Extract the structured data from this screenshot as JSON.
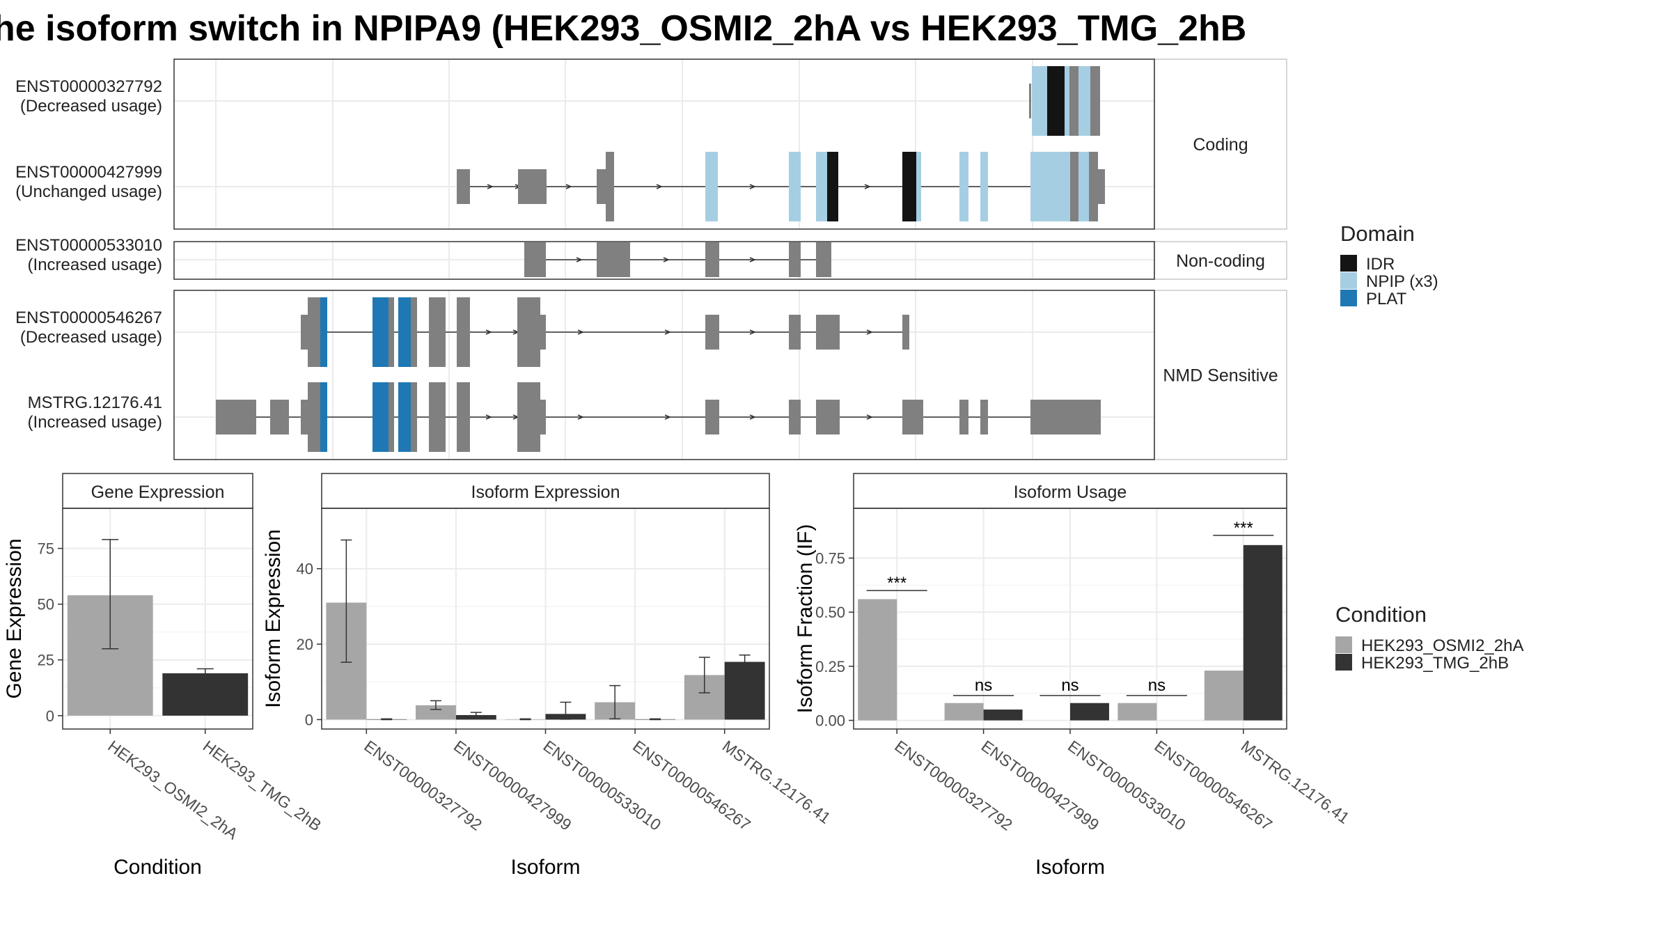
{
  "title": "he isoform switch in NPIPA9 (HEK293_OSMI2_2hA vs HEK293_TMG_2hB",
  "colors": {
    "exon": "#808080",
    "IDR": "#141414",
    "NPIP": "#a6cee3",
    "PLAT": "#1f78b4",
    "cond1": "#a6a6a6",
    "cond2": "#333333"
  },
  "structure": {
    "groups": [
      {
        "label": "Coding",
        "isoforms": [
          {
            "id": "ENST00000327792",
            "usage": "(Decreased usage)"
          },
          {
            "id": "ENST00000427999",
            "usage": "(Unchanged usage)"
          }
        ]
      },
      {
        "label": "Non-coding",
        "isoforms": [
          {
            "id": "ENST00000533010",
            "usage": "(Increased usage)"
          }
        ]
      },
      {
        "label": "NMD Sensitive",
        "isoforms": [
          {
            "id": "ENST00000546267",
            "usage": "(Decreased usage)"
          },
          {
            "id": "MSTRG.12176.41",
            "usage": "(Increased usage)"
          }
        ]
      }
    ]
  },
  "legend_domain": {
    "title": "Domain",
    "items": [
      {
        "label": "IDR",
        "color": "#141414"
      },
      {
        "label": "NPIP (x3)",
        "color": "#a6cee3"
      },
      {
        "label": "PLAT",
        "color": "#1f78b4"
      }
    ]
  },
  "legend_condition": {
    "title": "Condition",
    "items": [
      {
        "label": "HEK293_OSMI2_2hA",
        "color": "#a6a6a6"
      },
      {
        "label": "HEK293_TMG_2hB",
        "color": "#333333"
      }
    ]
  },
  "chart_data": [
    {
      "type": "bar",
      "title": "Gene Expression",
      "xlabel": "Condition",
      "ylabel": "Gene Expression",
      "categories": [
        "HEK293_OSMI2_2hA",
        "HEK293_TMG_2hB"
      ],
      "values": [
        54,
        19
      ],
      "errors": [
        [
          30,
          79
        ],
        [
          17.5,
          21
        ]
      ],
      "ylim": [
        -6,
        93
      ],
      "yticks": [
        0,
        25,
        50,
        75
      ],
      "ytick_labels": [
        "0",
        "25",
        "50",
        "75"
      ]
    },
    {
      "type": "bar",
      "title": "Isoform Expression",
      "xlabel": "Isoform",
      "ylabel": "Isoform Expression",
      "categories": [
        "ENST00000327792",
        "ENST00000427999",
        "ENST00000533010",
        "ENST00000546267",
        "MSTRG.12176.41"
      ],
      "series": [
        {
          "name": "HEK293_OSMI2_2hA",
          "values": [
            31,
            3.8,
            0.1,
            4.6,
            11.8
          ],
          "errors": [
            [
              15.2,
              47.6
            ],
            [
              2.7,
              5.0
            ],
            [
              0,
              0.2
            ],
            [
              0.2,
              9.0
            ],
            [
              7.1,
              16.5
            ]
          ]
        },
        {
          "name": "HEK293_TMG_2hB",
          "values": [
            0.1,
            1.2,
            1.5,
            0.1,
            15.3
          ],
          "errors": [
            [
              0,
              0.2
            ],
            [
              0.5,
              1.9
            ],
            [
              0.1,
              4.6
            ],
            [
              0,
              0.2
            ],
            [
              13.6,
              17.1
            ]
          ]
        }
      ],
      "ylim": [
        -2.5,
        56
      ],
      "yticks": [
        0,
        20,
        40
      ],
      "ytick_labels": [
        "0",
        "20",
        "40"
      ]
    },
    {
      "type": "bar",
      "title": "Isoform Usage",
      "xlabel": "Isoform",
      "ylabel": "Isoform Fraction (IF)",
      "categories": [
        "ENST00000327792",
        "ENST00000427999",
        "ENST00000533010",
        "ENST00000546267",
        "MSTRG.12176.41"
      ],
      "series": [
        {
          "name": "HEK293_OSMI2_2hA",
          "values": [
            0.56,
            0.08,
            0.0,
            0.08,
            0.23
          ]
        },
        {
          "name": "HEK293_TMG_2hB",
          "values": [
            0.0,
            0.05,
            0.08,
            0.0,
            0.81
          ]
        }
      ],
      "significance": [
        "***",
        "ns",
        "ns",
        "ns",
        "***"
      ],
      "sig_levels": [
        0.6,
        0.115,
        0.115,
        0.115,
        0.855
      ],
      "ylim": [
        -0.04,
        0.98
      ],
      "yticks": [
        0,
        0.25,
        0.5,
        0.75
      ],
      "ytick_labels": [
        "0.00",
        "0.25",
        "0.50",
        "0.75"
      ]
    }
  ]
}
